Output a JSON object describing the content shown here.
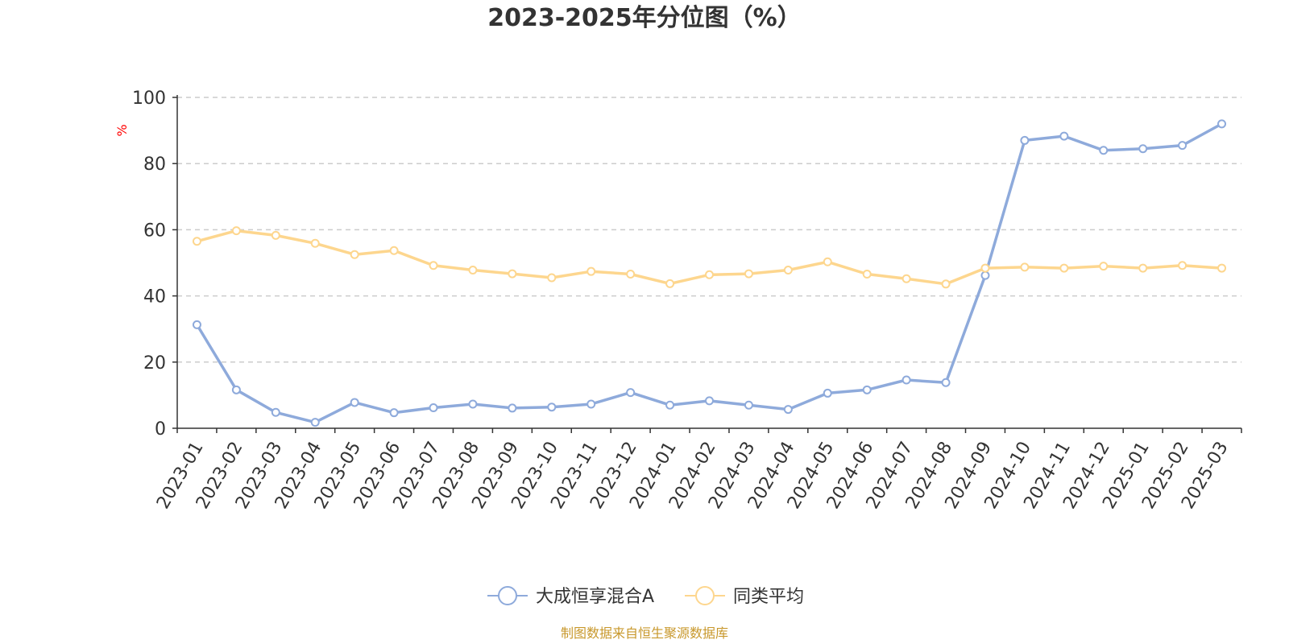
{
  "chart_data": {
    "type": "line",
    "title": "2023-2025年分位图（%）",
    "ylabel": "%",
    "ylim": [
      0,
      100
    ],
    "yticks": [
      0,
      20,
      40,
      60,
      80,
      100
    ],
    "grid": true,
    "legend_position": "bottom-center",
    "categories": [
      "2023-01",
      "2023-02",
      "2023-03",
      "2023-04",
      "2023-05",
      "2023-06",
      "2023-07",
      "2023-08",
      "2023-09",
      "2023-10",
      "2023-11",
      "2023-12",
      "2024-01",
      "2024-02",
      "2024-03",
      "2024-04",
      "2024-05",
      "2024-06",
      "2024-07",
      "2024-08",
      "2024-09",
      "2024-10",
      "2024-11",
      "2024-12",
      "2025-01",
      "2025-02",
      "2025-03"
    ],
    "series": [
      {
        "name": "大成恒享混合A",
        "color": "#8eaadb",
        "values": [
          31.3,
          11.6,
          4.8,
          1.8,
          7.8,
          4.7,
          6.2,
          7.3,
          6.1,
          6.4,
          7.3,
          10.8,
          7.0,
          8.3,
          7.0,
          5.7,
          10.6,
          11.6,
          14.6,
          13.8,
          46.2,
          87.0,
          88.3,
          84.0,
          84.5,
          85.5,
          92.0
        ]
      },
      {
        "name": "同类平均",
        "color": "#fdd68e",
        "values": [
          56.5,
          59.7,
          58.3,
          55.9,
          52.5,
          53.7,
          49.2,
          47.8,
          46.7,
          45.5,
          47.4,
          46.6,
          43.7,
          46.4,
          46.7,
          47.8,
          50.3,
          46.6,
          45.2,
          43.6,
          48.4,
          48.7,
          48.4,
          49.0,
          48.4,
          49.2,
          48.4
        ]
      }
    ]
  },
  "source_text": "制图数据来自恒生聚源数据库"
}
